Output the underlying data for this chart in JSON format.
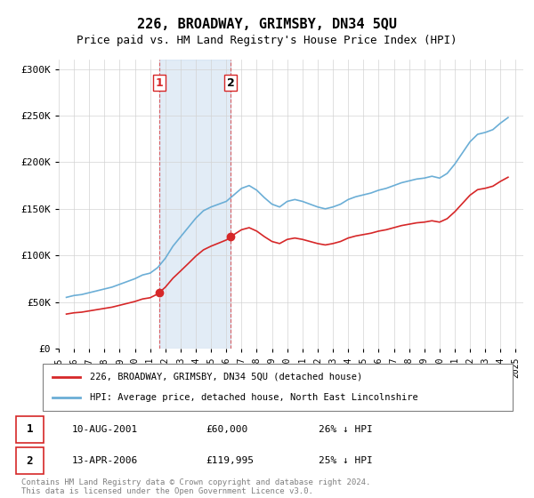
{
  "title": "226, BROADWAY, GRIMSBY, DN34 5QU",
  "subtitle": "Price paid vs. HM Land Registry's House Price Index (HPI)",
  "hpi_years": [
    1995.5,
    1996.0,
    1996.5,
    1997.0,
    1997.5,
    1998.0,
    1998.5,
    1999.0,
    1999.5,
    2000.0,
    2000.5,
    2001.0,
    2001.5,
    2002.0,
    2002.5,
    2003.0,
    2003.5,
    2004.0,
    2004.5,
    2005.0,
    2005.5,
    2006.0,
    2006.5,
    2007.0,
    2007.5,
    2008.0,
    2008.5,
    2009.0,
    2009.5,
    2010.0,
    2010.5,
    2011.0,
    2011.5,
    2012.0,
    2012.5,
    2013.0,
    2013.5,
    2014.0,
    2014.5,
    2015.0,
    2015.5,
    2016.0,
    2016.5,
    2017.0,
    2017.5,
    2018.0,
    2018.5,
    2019.0,
    2019.5,
    2020.0,
    2020.5,
    2021.0,
    2021.5,
    2022.0,
    2022.5,
    2023.0,
    2023.5,
    2024.0,
    2024.5
  ],
  "hpi_values": [
    55000,
    57000,
    58000,
    60000,
    62000,
    64000,
    66000,
    69000,
    72000,
    75000,
    79000,
    81000,
    87000,
    97000,
    110000,
    120000,
    130000,
    140000,
    148000,
    152000,
    155000,
    158000,
    165000,
    172000,
    175000,
    170000,
    162000,
    155000,
    152000,
    158000,
    160000,
    158000,
    155000,
    152000,
    150000,
    152000,
    155000,
    160000,
    163000,
    165000,
    167000,
    170000,
    172000,
    175000,
    178000,
    180000,
    182000,
    183000,
    185000,
    183000,
    188000,
    198000,
    210000,
    222000,
    230000,
    232000,
    235000,
    242000,
    248000
  ],
  "price_paid_dates": [
    2001.6,
    2006.27
  ],
  "price_paid_values": [
    60000,
    119995
  ],
  "sale1_label": "1",
  "sale2_label": "2",
  "sale1_date_str": "10-AUG-2001",
  "sale1_price_str": "£60,000",
  "sale1_hpi_str": "26% ↓ HPI",
  "sale2_date_str": "13-APR-2006",
  "sale2_price_str": "£119,995",
  "sale2_hpi_str": "25% ↓ HPI",
  "legend_label1": "226, BROADWAY, GRIMSBY, DN34 5QU (detached house)",
  "legend_label2": "HPI: Average price, detached house, North East Lincolnshire",
  "footer": "Contains HM Land Registry data © Crown copyright and database right 2024.\nThis data is licensed under the Open Government Licence v3.0.",
  "hpi_color": "#6baed6",
  "price_color": "#d62728",
  "shade_color": "#c6dbef",
  "ylim": [
    0,
    310000
  ],
  "yticks": [
    0,
    50000,
    100000,
    150000,
    200000,
    250000,
    300000
  ],
  "xlim": [
    1995.0,
    2025.5
  ],
  "xtick_labels": [
    "1995",
    "1996",
    "1997",
    "1998",
    "1999",
    "2000",
    "2001",
    "2002",
    "2003",
    "2004",
    "2005",
    "2006",
    "2007",
    "2008",
    "2009",
    "2010",
    "2011",
    "2012",
    "2013",
    "2014",
    "2015",
    "2016",
    "2017",
    "2018",
    "2019",
    "2020",
    "2021",
    "2022",
    "2023",
    "2024",
    "2025"
  ]
}
